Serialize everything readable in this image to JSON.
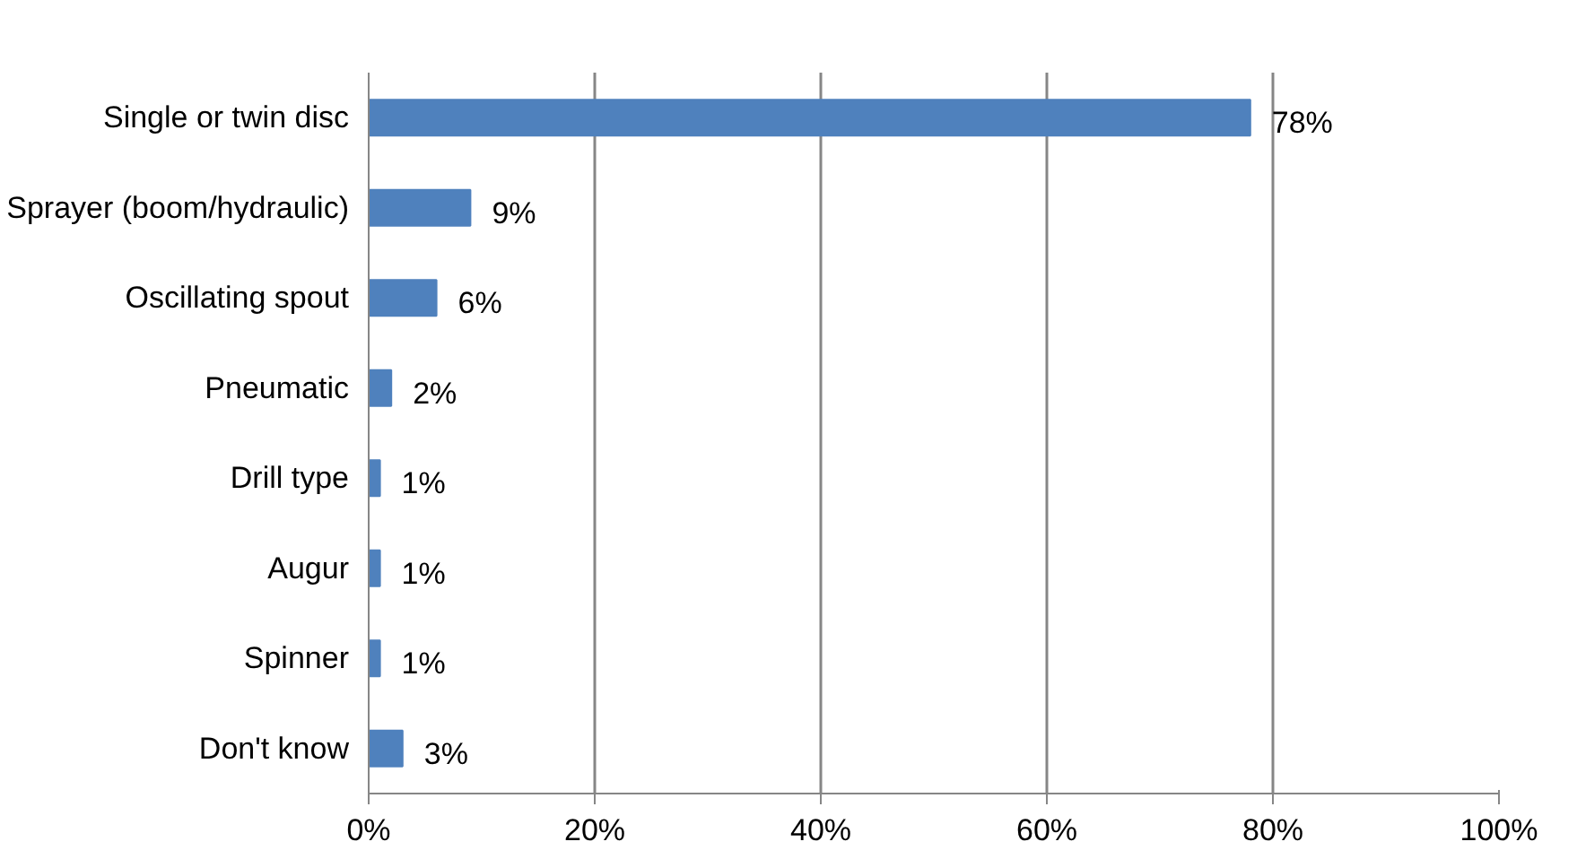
{
  "chart_data": {
    "type": "bar",
    "orientation": "horizontal",
    "categories": [
      "Single or twin disc",
      "Sprayer (boom/hydraulic)",
      "Oscillating spout",
      "Pneumatic",
      "Drill type",
      "Augur",
      "Spinner",
      "Don't know"
    ],
    "values": [
      78,
      9,
      6,
      2,
      1,
      1,
      1,
      3
    ],
    "value_labels": [
      "78%",
      "9%",
      "6%",
      "2%",
      "1%",
      "1%",
      "1%",
      "3%"
    ],
    "color": "#4f81bd",
    "xlim": [
      0,
      100
    ],
    "xticks": [
      {
        "value": 0,
        "label": "0%"
      },
      {
        "value": 20,
        "label": "20%"
      },
      {
        "value": 40,
        "label": "40%"
      },
      {
        "value": 60,
        "label": "60%"
      },
      {
        "value": 80,
        "label": "80%"
      },
      {
        "value": 100,
        "label": "100%"
      }
    ],
    "grid": "x"
  }
}
